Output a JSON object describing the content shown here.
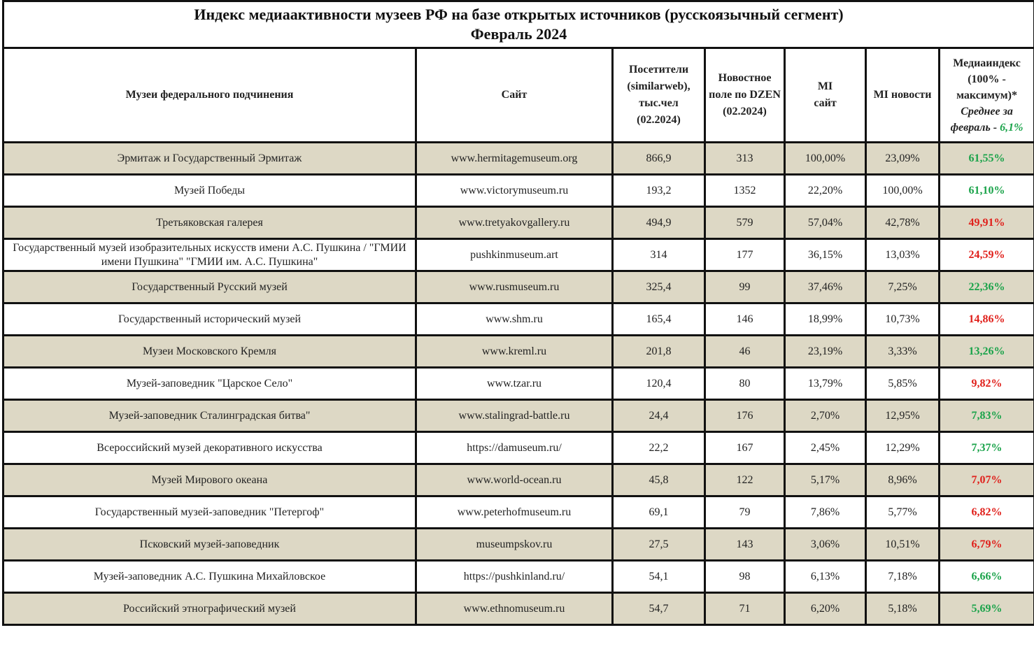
{
  "title": {
    "line1": "Индекс медиаактивности музеев РФ на базе открытых источников (русскоязычный сегмент)",
    "line2": "Февраль 2024"
  },
  "headers": {
    "museum": "Музеи федерального подчинения",
    "site": "Сайт",
    "visitors": "Посетители (similarweb), тыс.чел (02.2024)",
    "news": "Новостное поле по DZEN (02.2024)",
    "mi_site": "MI сайт",
    "mi_news": "MI новости",
    "mediaindex": "Медиаиндекс (100% - максимум)*",
    "avg_label": "Среднее за февраль - ",
    "avg_value": "6,1%"
  },
  "colors": {
    "green": "#1aa34a",
    "red": "#e0201b",
    "row_alt": "#ddd8c5"
  },
  "rows": [
    {
      "museum": "Эрмитаж и Государственный Эрмитаж",
      "site": "www.hermitagemuseum.org",
      "visitors": "866,9",
      "news": "313",
      "mi_site": "100,00%",
      "mi_news": "23,09%",
      "index": "61,55%",
      "color": "green"
    },
    {
      "museum": "Музей Победы",
      "site": "www.victorymuseum.ru",
      "visitors": "193,2",
      "news": "1352",
      "mi_site": "22,20%",
      "mi_news": "100,00%",
      "index": "61,10%",
      "color": "green"
    },
    {
      "museum": "Третьяковская галерея",
      "site": "www.tretyakovgallery.ru",
      "visitors": "494,9",
      "news": "579",
      "mi_site": "57,04%",
      "mi_news": "42,78%",
      "index": "49,91%",
      "color": "red"
    },
    {
      "museum": "Государственный музей изобразительных искусств имени А.С. Пушкина / \"ГМИИ имени Пушкина\" \"ГМИИ им. А.С. Пушкина\"",
      "site": "pushkinmuseum.art",
      "visitors": "314",
      "news": "177",
      "mi_site": "36,15%",
      "mi_news": "13,03%",
      "index": "24,59%",
      "color": "red"
    },
    {
      "museum": "Государственный Русский музей",
      "site": "www.rusmuseum.ru",
      "visitors": "325,4",
      "news": "99",
      "mi_site": "37,46%",
      "mi_news": "7,25%",
      "index": "22,36%",
      "color": "green"
    },
    {
      "museum": "Государственный исторический музей",
      "site": "www.shm.ru",
      "visitors": "165,4",
      "news": "146",
      "mi_site": "18,99%",
      "mi_news": "10,73%",
      "index": "14,86%",
      "color": "red"
    },
    {
      "museum": "Музеи Московского Кремля",
      "site": "www.kreml.ru",
      "visitors": "201,8",
      "news": "46",
      "mi_site": "23,19%",
      "mi_news": "3,33%",
      "index": "13,26%",
      "color": "green"
    },
    {
      "museum": "Музей-заповедник \"Царское Село\"",
      "site": "www.tzar.ru",
      "visitors": "120,4",
      "news": "80",
      "mi_site": "13,79%",
      "mi_news": "5,85%",
      "index": "9,82%",
      "color": "red"
    },
    {
      "museum": "Музей-заповедник Сталинградская битва\"",
      "site": "www.stalingrad-battle.ru",
      "visitors": "24,4",
      "news": "176",
      "mi_site": "2,70%",
      "mi_news": "12,95%",
      "index": "7,83%",
      "color": "green"
    },
    {
      "museum": "Всероссийский музей декоративного искусства",
      "site": "https://damuseum.ru/",
      "visitors": "22,2",
      "news": "167",
      "mi_site": "2,45%",
      "mi_news": "12,29%",
      "index": "7,37%",
      "color": "green"
    },
    {
      "museum": "Музей Мирового океана",
      "site": "www.world-ocean.ru",
      "visitors": "45,8",
      "news": "122",
      "mi_site": "5,17%",
      "mi_news": "8,96%",
      "index": "7,07%",
      "color": "red"
    },
    {
      "museum": "Государственный музей-заповедник \"Петергоф\"",
      "site": "www.peterhofmuseum.ru",
      "visitors": "69,1",
      "news": "79",
      "mi_site": "7,86%",
      "mi_news": "5,77%",
      "index": "6,82%",
      "color": "red"
    },
    {
      "museum": "Псковский музей-заповедник",
      "site": "museumpskov.ru",
      "visitors": "27,5",
      "news": "143",
      "mi_site": "3,06%",
      "mi_news": "10,51%",
      "index": "6,79%",
      "color": "red"
    },
    {
      "museum": "Музей-заповедник А.С. Пушкина Михайловское",
      "site": "https://pushkinland.ru/",
      "visitors": "54,1",
      "news": "98",
      "mi_site": "6,13%",
      "mi_news": "7,18%",
      "index": "6,66%",
      "color": "green"
    },
    {
      "museum": "Российский этнографический музей",
      "site": "www.ethnomuseum.ru",
      "visitors": "54,7",
      "news": "71",
      "mi_site": "6,20%",
      "mi_news": "5,18%",
      "index": "5,69%",
      "color": "green"
    }
  ]
}
